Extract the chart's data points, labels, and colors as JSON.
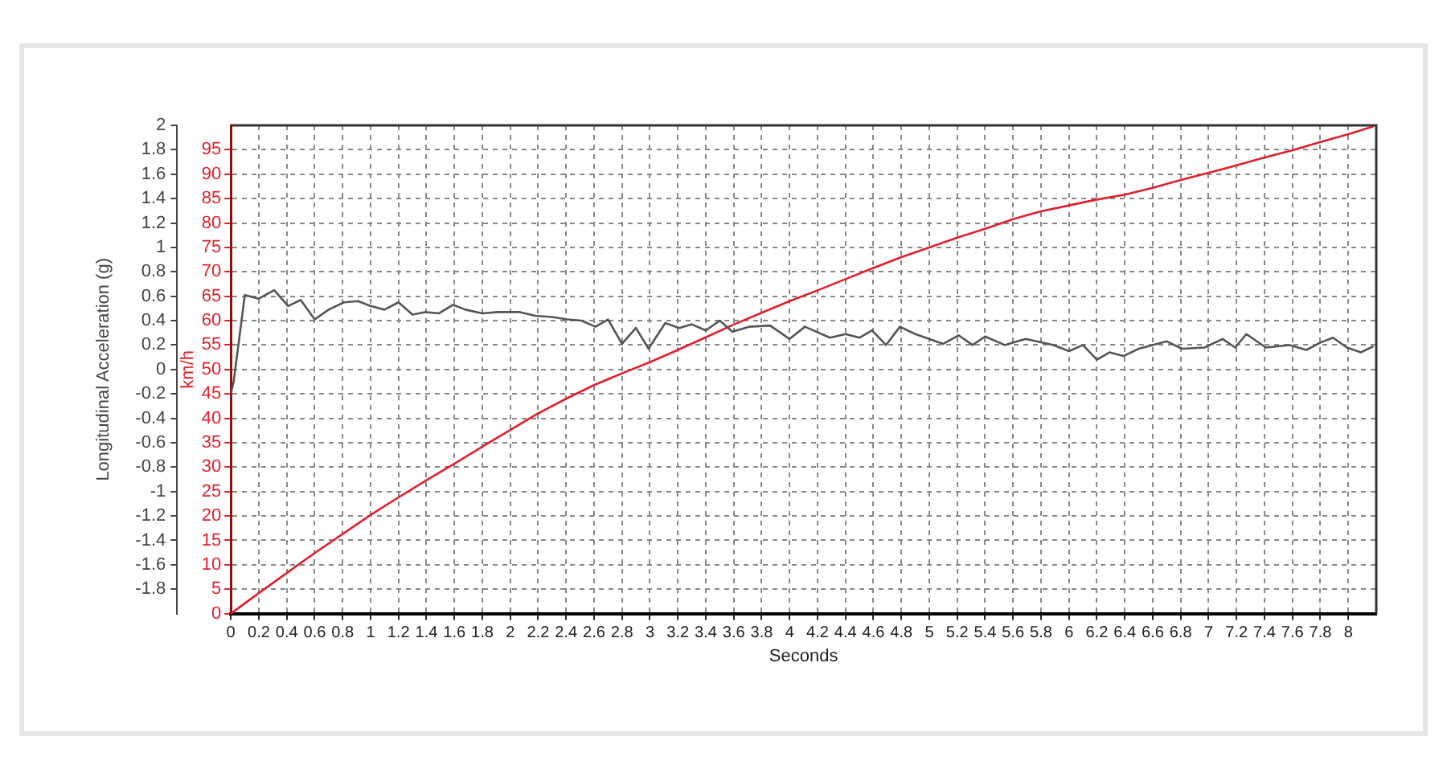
{
  "chart_data": {
    "type": "line",
    "xlabel": "Seconds",
    "ylabel": "Longitudinal Acceleration (g)",
    "y2label": "km/h",
    "grid": true,
    "xlim": [
      0,
      8.2
    ],
    "xticks": [
      0,
      0.2,
      0.4,
      0.6,
      0.8,
      1,
      1.2,
      1.4,
      1.6,
      1.8,
      2,
      2.2,
      2.4,
      2.6,
      2.8,
      3,
      3.2,
      3.4,
      3.6,
      3.8,
      4,
      4.2,
      4.4,
      4.6,
      4.8,
      5,
      5.2,
      5.4,
      5.6,
      5.8,
      6,
      6.2,
      6.4,
      6.6,
      6.8,
      7,
      7.2,
      7.4,
      7.6,
      7.8,
      8
    ],
    "ylim": [
      -2,
      2
    ],
    "yticks": [
      -1.8,
      -1.6,
      -1.4,
      -1.2,
      -1,
      -0.8,
      -0.6,
      -0.4,
      -0.2,
      0,
      0.2,
      0.4,
      0.6,
      0.8,
      1,
      1.2,
      1.4,
      1.6,
      1.8,
      2
    ],
    "y2lim": [
      0,
      100
    ],
    "y2ticks": [
      0,
      5,
      10,
      15,
      20,
      25,
      30,
      35,
      40,
      45,
      50,
      55,
      60,
      65,
      70,
      75,
      80,
      85,
      90,
      95
    ],
    "series": [
      {
        "color": "#555555",
        "x": [
          0,
          0.02,
          0.1,
          0.2,
          0.31,
          0.41,
          0.5,
          0.6,
          0.7,
          0.81,
          0.91,
          1.0,
          1.1,
          1.2,
          1.3,
          1.39,
          1.49,
          1.59,
          1.68,
          1.8,
          1.91,
          2.07,
          2.18,
          2.3,
          2.41,
          2.51,
          2.61,
          2.7,
          2.8,
          2.9,
          2.99,
          3.11,
          3.21,
          3.3,
          3.4,
          3.5,
          3.59,
          3.71,
          3.86,
          4.0,
          4.11,
          4.29,
          4.4,
          4.5,
          4.59,
          4.69,
          4.79,
          4.9,
          5.1,
          5.21,
          5.31,
          5.4,
          5.54,
          5.69,
          5.89,
          6.0,
          6.1,
          6.2,
          6.29,
          6.39,
          6.5,
          6.7,
          6.81,
          6.97,
          7.1,
          7.19,
          7.27,
          7.41,
          7.58,
          7.7,
          7.8,
          7.89,
          7.99,
          8.09,
          8.18
        ],
        "values": [
          -0.2,
          -0.1,
          0.61,
          0.58,
          0.65,
          0.52,
          0.57,
          0.41,
          0.49,
          0.55,
          0.56,
          0.52,
          0.49,
          0.55,
          0.45,
          0.47,
          0.46,
          0.53,
          0.49,
          0.46,
          0.47,
          0.47,
          0.44,
          0.43,
          0.41,
          0.4,
          0.35,
          0.41,
          0.21,
          0.34,
          0.17,
          0.38,
          0.34,
          0.37,
          0.32,
          0.4,
          0.31,
          0.35,
          0.36,
          0.25,
          0.35,
          0.26,
          0.29,
          0.26,
          0.32,
          0.2,
          0.35,
          0.29,
          0.21,
          0.28,
          0.2,
          0.27,
          0.2,
          0.25,
          0.2,
          0.15,
          0.2,
          0.08,
          0.14,
          0.11,
          0.17,
          0.23,
          0.17,
          0.18,
          0.25,
          0.18,
          0.29,
          0.18,
          0.2,
          0.16,
          0.22,
          0.26,
          0.18,
          0.14,
          0.19
        ]
      },
      {
        "color": "#e0202c",
        "axis": "y2",
        "x": [
          0,
          0.2,
          0.4,
          0.6,
          0.8,
          1,
          1.2,
          1.4,
          1.6,
          1.8,
          2,
          2.2,
          2.4,
          2.6,
          2.8,
          3,
          3.2,
          3.4,
          3.6,
          3.8,
          4,
          4.2,
          4.4,
          4.6,
          4.8,
          5,
          5.2,
          5.4,
          5.6,
          5.8,
          6,
          6.2,
          6.4,
          6.6,
          6.8,
          7,
          7.2,
          7.4,
          7.6,
          7.8,
          8,
          8.18
        ],
        "values": [
          0,
          4.2,
          8.3,
          12.4,
          16.3,
          20.2,
          23.8,
          27.3,
          30.7,
          34.2,
          37.6,
          41,
          44,
          46.8,
          49.2,
          51.5,
          54,
          56.6,
          59.2,
          61.6,
          64,
          66.2,
          68.5,
          70.8,
          73,
          75,
          77,
          78.8,
          80.8,
          82.4,
          83.6,
          84.8,
          85.8,
          87.2,
          88.8,
          90.3,
          91.8,
          93.4,
          94.9,
          96.6,
          98.2,
          99.8
        ]
      }
    ]
  }
}
